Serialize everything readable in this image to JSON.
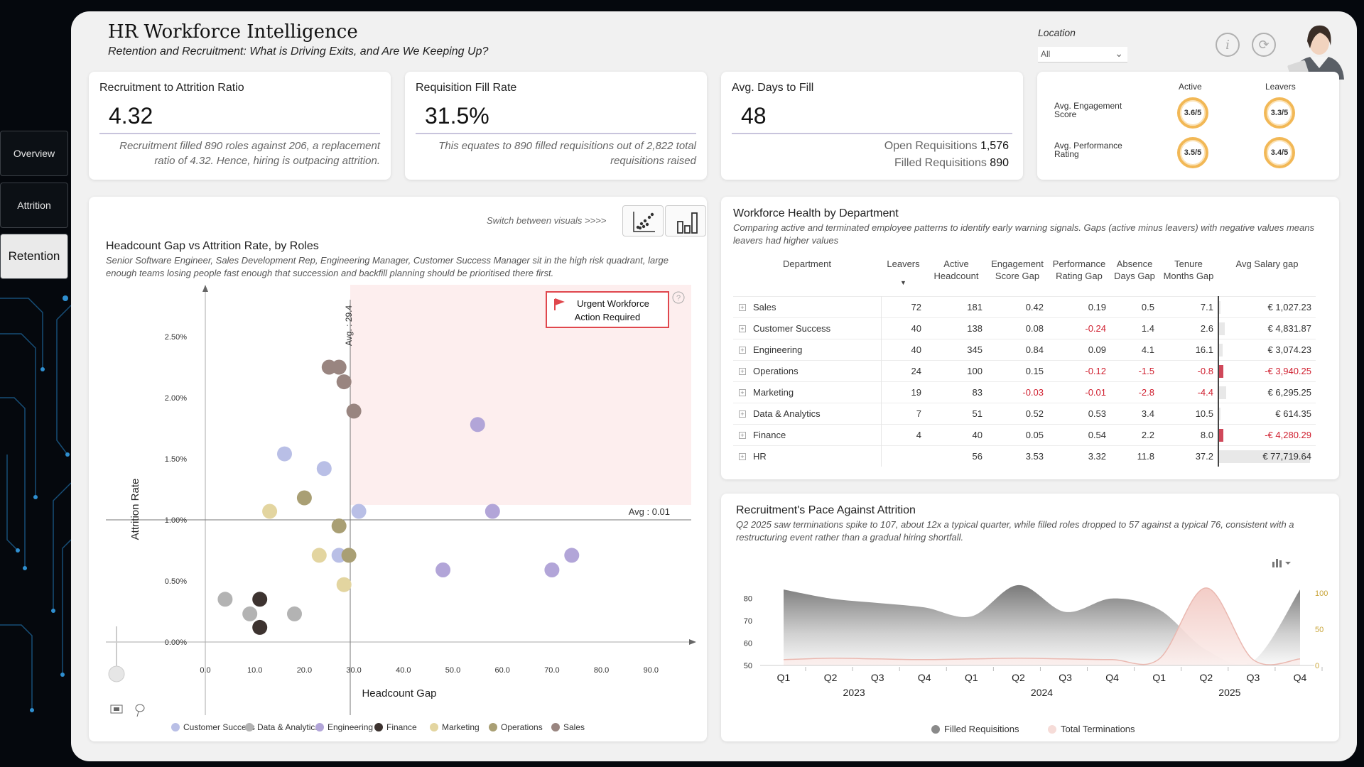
{
  "nav": {
    "items": [
      {
        "label": "Overview",
        "active": false
      },
      {
        "label": "Attrition",
        "active": false
      },
      {
        "label": "Retention",
        "active": true
      }
    ]
  },
  "header": {
    "title": "HR Workforce Intelligence",
    "subtitle": "Retention and Recruitment: What is Driving Exits, and Are We Keeping Up?",
    "location_label": "Location",
    "location_value": "All",
    "info_icon": "info-icon",
    "refresh_icon": "refresh-icon"
  },
  "kpis": {
    "ratio": {
      "title": "Recruitment to Attrition Ratio",
      "value": "4.32",
      "note": "Recruitment filled 890 roles against 206, a replacement ratio of 4.32. Hence, hiring is outpacing attrition."
    },
    "fill": {
      "title": "Requisition Fill Rate",
      "value": "31.5%",
      "note": "This equates to 890 filled requisitions out of 2,822 total requisitions raised"
    },
    "days": {
      "title": "Avg. Days to Fill",
      "value": "48",
      "open_label": "Open Requisitions",
      "open_value": "1,576",
      "filled_label": "Filled Requisitions",
      "filled_value": "890"
    }
  },
  "rings": {
    "col_active": "Active",
    "col_leavers": "Leavers",
    "engagement_label": "Avg. Engagement Score",
    "performance_label": "Avg. Performance Rating",
    "engagement_active": "3.6/5",
    "engagement_leavers": "3.3/5",
    "performance_active": "3.5/5",
    "performance_leavers": "3.4/5",
    "accent": "#f2b856"
  },
  "scatter": {
    "switch_label": "Switch between visuals  >>>>",
    "title": "Headcount Gap vs Attrition Rate, by Roles",
    "subtitle": "Senior Software Engineer, Sales Development Rep, Engineering Manager, Customer Success Manager sit in the high risk quadrant, large enough teams losing people fast enough that succession and backfill planning should be prioritised there first.",
    "urgent_label": "Urgent Workforce Action Required",
    "avg_x_label": "Avg. : 29.4",
    "avg_y_label": "Avg : 0.01",
    "xlabel": "Headcount Gap",
    "ylabel": "Attrition Rate",
    "x_ticks": [
      "0.0",
      "10.0",
      "20.0",
      "30.0",
      "40.0",
      "50.0",
      "60.0",
      "70.0",
      "80.0",
      "90.0"
    ],
    "y_ticks": [
      "0.00%",
      "0.50%",
      "1.00%",
      "1.50%",
      "2.00%",
      "2.50%"
    ],
    "legend": [
      {
        "name": "Customer Success",
        "color": "#b9bfe6"
      },
      {
        "name": "Data & Analytics",
        "color": "#b3b3b3"
      },
      {
        "name": "Engineering",
        "color": "#b2a5d8"
      },
      {
        "name": "Finance",
        "color": "#3d3330"
      },
      {
        "name": "Marketing",
        "color": "#e3d5a0"
      },
      {
        "name": "Operations",
        "color": "#a99f74"
      },
      {
        "name": "Sales",
        "color": "#998580"
      }
    ]
  },
  "chart_data": [
    {
      "type": "scatter",
      "title": "Headcount Gap vs Attrition Rate, by Roles",
      "xlabel": "Headcount Gap",
      "ylabel": "Attrition Rate",
      "xlim": [
        0,
        100
      ],
      "ylim": [
        0,
        0.027
      ],
      "avg_x": 29.4,
      "avg_y": 0.01,
      "series": [
        {
          "name": "Customer Success",
          "color": "#b9bfe6",
          "points": [
            [
              16,
              0.0154
            ],
            [
              24,
              0.0142
            ],
            [
              31,
              0.0107
            ],
            [
              27,
              0.0071
            ]
          ]
        },
        {
          "name": "Data & Analytics",
          "color": "#b3b3b3",
          "points": [
            [
              4,
              0.0035
            ],
            [
              9,
              0.0023
            ],
            [
              18,
              0.0023
            ]
          ]
        },
        {
          "name": "Engineering",
          "color": "#b2a5d8",
          "points": [
            [
              55,
              0.0178
            ],
            [
              58,
              0.0107
            ],
            [
              48,
              0.0059
            ],
            [
              70,
              0.0059
            ],
            [
              74,
              0.0071
            ]
          ]
        },
        {
          "name": "Finance",
          "color": "#3d3330",
          "points": [
            [
              11,
              0.0035
            ],
            [
              11,
              0.0012
            ]
          ]
        },
        {
          "name": "Marketing",
          "color": "#e3d5a0",
          "points": [
            [
              13,
              0.0107
            ],
            [
              23,
              0.0071
            ],
            [
              28,
              0.0047
            ]
          ]
        },
        {
          "name": "Operations",
          "color": "#a99f74",
          "points": [
            [
              20,
              0.0118
            ],
            [
              27,
              0.0095
            ],
            [
              29,
              0.0071
            ]
          ]
        },
        {
          "name": "Sales",
          "color": "#998580",
          "points": [
            [
              25,
              0.0225
            ],
            [
              27,
              0.0225
            ],
            [
              28,
              0.0213
            ],
            [
              30,
              0.0189
            ]
          ]
        }
      ]
    },
    {
      "type": "area",
      "title": "Recruitment's Pace Against Attrition",
      "categories": [
        "Q1",
        "Q2",
        "Q3",
        "Q4",
        "Q1",
        "Q2",
        "Q3",
        "Q4",
        "Q1",
        "Q2",
        "Q3",
        "Q4"
      ],
      "years": [
        "2023",
        "2024",
        "2025"
      ],
      "y_left_ticks": [
        "50",
        "60",
        "70",
        "80"
      ],
      "y_right_ticks": [
        "0",
        "50",
        "100"
      ],
      "ylim_left": [
        50,
        85
      ],
      "ylim_right": [
        0,
        110
      ],
      "series": [
        {
          "name": "Filled Requisitions",
          "axis": "left",
          "color": "#8a8a8a",
          "values": [
            84,
            80,
            78,
            76,
            72,
            86,
            74,
            80,
            75,
            57,
            52,
            84
          ]
        },
        {
          "name": "Total Terminations",
          "axis": "right",
          "color": "#f0c9c4",
          "values": [
            8,
            10,
            9,
            8,
            9,
            10,
            9,
            8,
            9,
            107,
            8,
            9
          ]
        }
      ]
    }
  ],
  "workforce": {
    "title": "Workforce Health by Department",
    "subtitle": "Comparing active and terminated employee patterns to identify early warning signals. Gaps (active minus leavers) with negative values means leavers had higher values",
    "columns": [
      "Department",
      "Leavers",
      "Active Headcount",
      "Engagement Score Gap",
      "Performance Rating Gap",
      "Absence Days Gap",
      "Tenure Months Gap",
      "Avg Salary gap"
    ],
    "rows": [
      {
        "dept": "Sales",
        "leavers": "72",
        "active": "181",
        "eng": "0.42",
        "perf": "0.19",
        "abs": "0.5",
        "ten": "7.1",
        "sal": "€ 1,027.23"
      },
      {
        "dept": "Customer Success",
        "leavers": "40",
        "active": "138",
        "eng": "0.08",
        "perf": "-0.24",
        "abs": "1.4",
        "ten": "2.6",
        "sal": "€ 4,831.87"
      },
      {
        "dept": "Engineering",
        "leavers": "40",
        "active": "345",
        "eng": "0.84",
        "perf": "0.09",
        "abs": "4.1",
        "ten": "16.1",
        "sal": "€ 3,074.23"
      },
      {
        "dept": "Operations",
        "leavers": "24",
        "active": "100",
        "eng": "0.15",
        "perf": "-0.12",
        "abs": "-1.5",
        "ten": "-0.8",
        "sal": "-€ 3,940.25"
      },
      {
        "dept": "Marketing",
        "leavers": "19",
        "active": "83",
        "eng": "-0.03",
        "perf": "-0.01",
        "abs": "-2.8",
        "ten": "-4.4",
        "sal": "€ 6,295.25"
      },
      {
        "dept": "Data & Analytics",
        "leavers": "7",
        "active": "51",
        "eng": "0.52",
        "perf": "0.53",
        "abs": "3.4",
        "ten": "10.5",
        "sal": "€ 614.35"
      },
      {
        "dept": "Finance",
        "leavers": "4",
        "active": "40",
        "eng": "0.05",
        "perf": "0.54",
        "abs": "2.2",
        "ten": "8.0",
        "sal": "-€ 4,280.29"
      },
      {
        "dept": "HR",
        "leavers": "",
        "active": "56",
        "eng": "3.53",
        "perf": "3.32",
        "abs": "11.8",
        "ten": "37.2",
        "sal": "€ 77,719.64"
      }
    ]
  },
  "pace": {
    "title": "Recruitment's Pace Against Attrition",
    "subtitle": "Q2 2025 saw terminations spike to 107, about 12x a typical quarter, while filled roles dropped to 57 against a typical 76, consistent with a restructuring event rather than a gradual hiring shortfall.",
    "legend_filled": "Filled Requisitions",
    "legend_term": "Total Terminations"
  }
}
